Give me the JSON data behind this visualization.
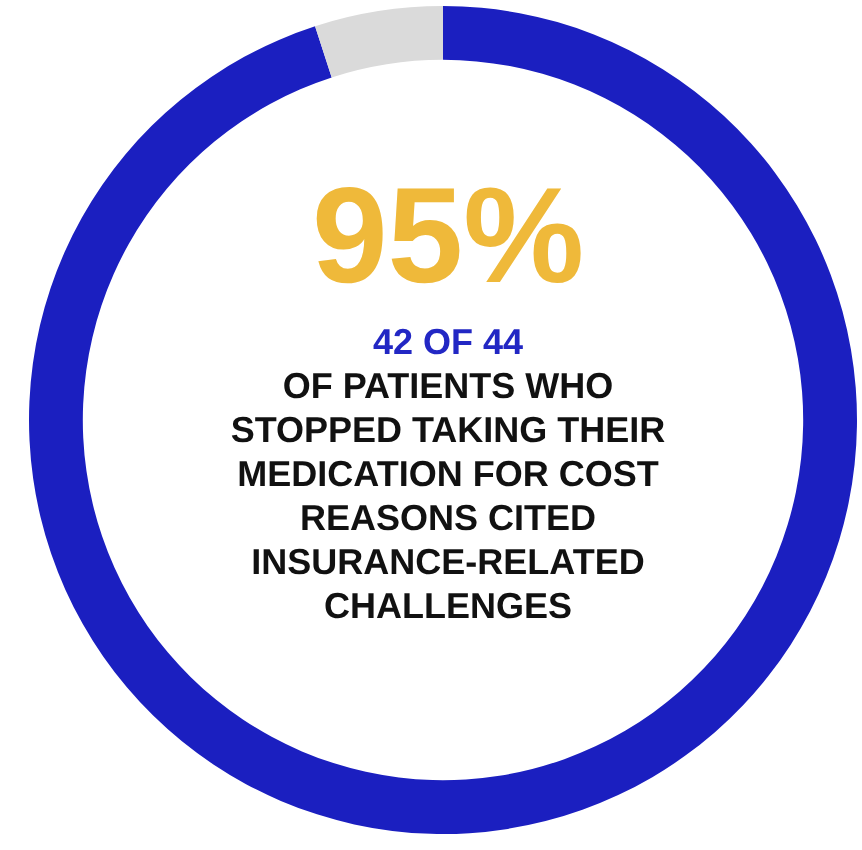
{
  "chart_data": {
    "type": "donut",
    "categories": [
      null,
      null
    ],
    "values": [
      95,
      5
    ],
    "colors": [
      "#1b1fc0",
      "#dadada"
    ],
    "annotations": [
      "95%",
      "42 OF 44",
      "OF PATIENTS WHO STOPPED TAKING THEIR MEDICATION FOR COST REASONS CITED INSURANCE-RELATED CHALLENGES"
    ]
  }
}
